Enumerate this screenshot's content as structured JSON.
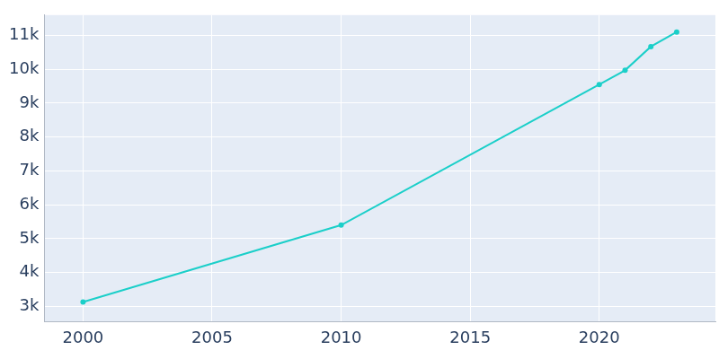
{
  "chart_data": {
    "type": "line",
    "x": [
      2000,
      2010,
      2020,
      2021,
      2022,
      2023
    ],
    "values": [
      3130,
      5400,
      9550,
      9970,
      10670,
      11100
    ],
    "color": "#1bcfc9",
    "marker": "circle",
    "grid": true,
    "xlim": [
      1998.5,
      2024.5
    ],
    "xticks": [
      2000,
      2005,
      2010,
      2015,
      2020
    ],
    "ylim": [
      2550,
      11600
    ],
    "yticks": [
      {
        "value": 3000,
        "label": "3k"
      },
      {
        "value": 4000,
        "label": "4k"
      },
      {
        "value": 5000,
        "label": "5k"
      },
      {
        "value": 6000,
        "label": "6k"
      },
      {
        "value": 7000,
        "label": "7k"
      },
      {
        "value": 8000,
        "label": "8k"
      },
      {
        "value": 9000,
        "label": "9k"
      },
      {
        "value": 10000,
        "label": "10k"
      },
      {
        "value": 11000,
        "label": "11k"
      }
    ]
  }
}
